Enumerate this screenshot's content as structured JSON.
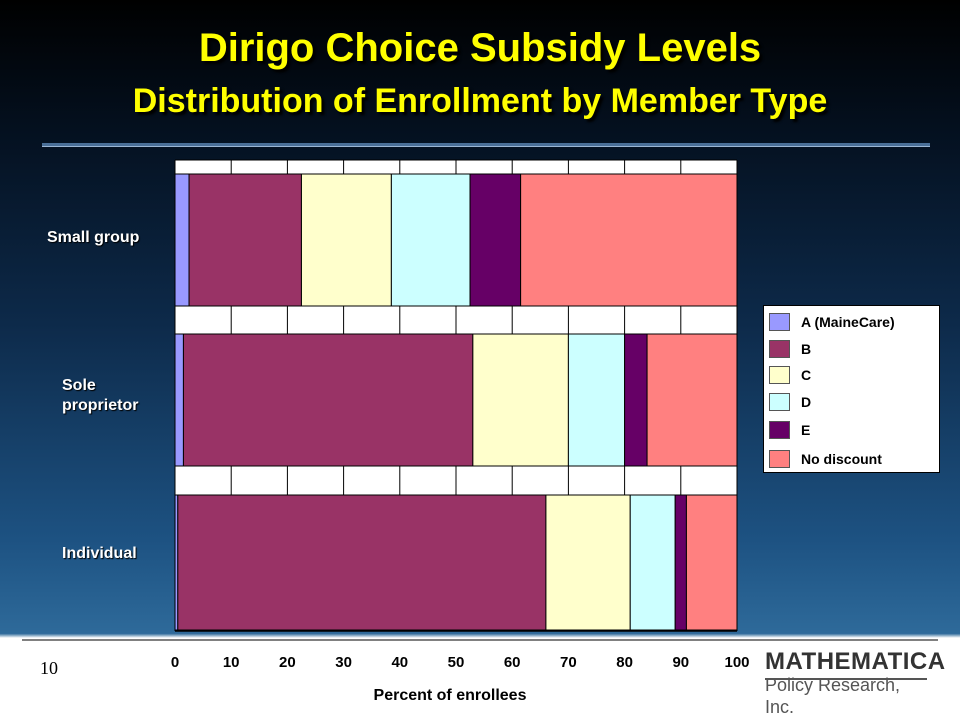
{
  "title": "Dirigo Choice Subsidy Levels",
  "subtitle": "Distribution of Enrollment by Member Type",
  "page_number": "10",
  "logo": {
    "line1": "MATHEMATICA",
    "line2": "Policy Research, Inc."
  },
  "colors": {
    "A (MaineCare)": "#9999ff",
    "B": "#993366",
    "C": "#ffffcc",
    "D": "#ccffff",
    "E": "#660066",
    "No discount": "#ff8080"
  },
  "chart_data": {
    "type": "bar",
    "orientation": "horizontal",
    "stacked": true,
    "title": "Dirigo Choice Subsidy Levels",
    "subtitle": "Distribution of Enrollment by Member Type",
    "xlabel": "Percent of enrollees",
    "ylabel": "",
    "xlim": [
      0,
      100
    ],
    "xticks": [
      "0",
      "10",
      "20",
      "30",
      "40",
      "50",
      "60",
      "70",
      "80",
      "90",
      "100"
    ],
    "grid": true,
    "legend_position": "right",
    "categories": [
      "Small group",
      "Sole proprietor",
      "Individual"
    ],
    "category_display": [
      "Small group",
      "Sole\nproprietor",
      "Individual"
    ],
    "series": [
      {
        "name": "A (MaineCare)",
        "values": [
          2.5,
          1.5,
          0.5
        ]
      },
      {
        "name": "B",
        "values": [
          20,
          51.5,
          65.5
        ]
      },
      {
        "name": "C",
        "values": [
          16,
          17,
          15
        ]
      },
      {
        "name": "D",
        "values": [
          14,
          10,
          8
        ]
      },
      {
        "name": "E",
        "values": [
          9,
          4,
          2
        ]
      },
      {
        "name": "No discount",
        "values": [
          38.5,
          16,
          9
        ]
      }
    ]
  }
}
